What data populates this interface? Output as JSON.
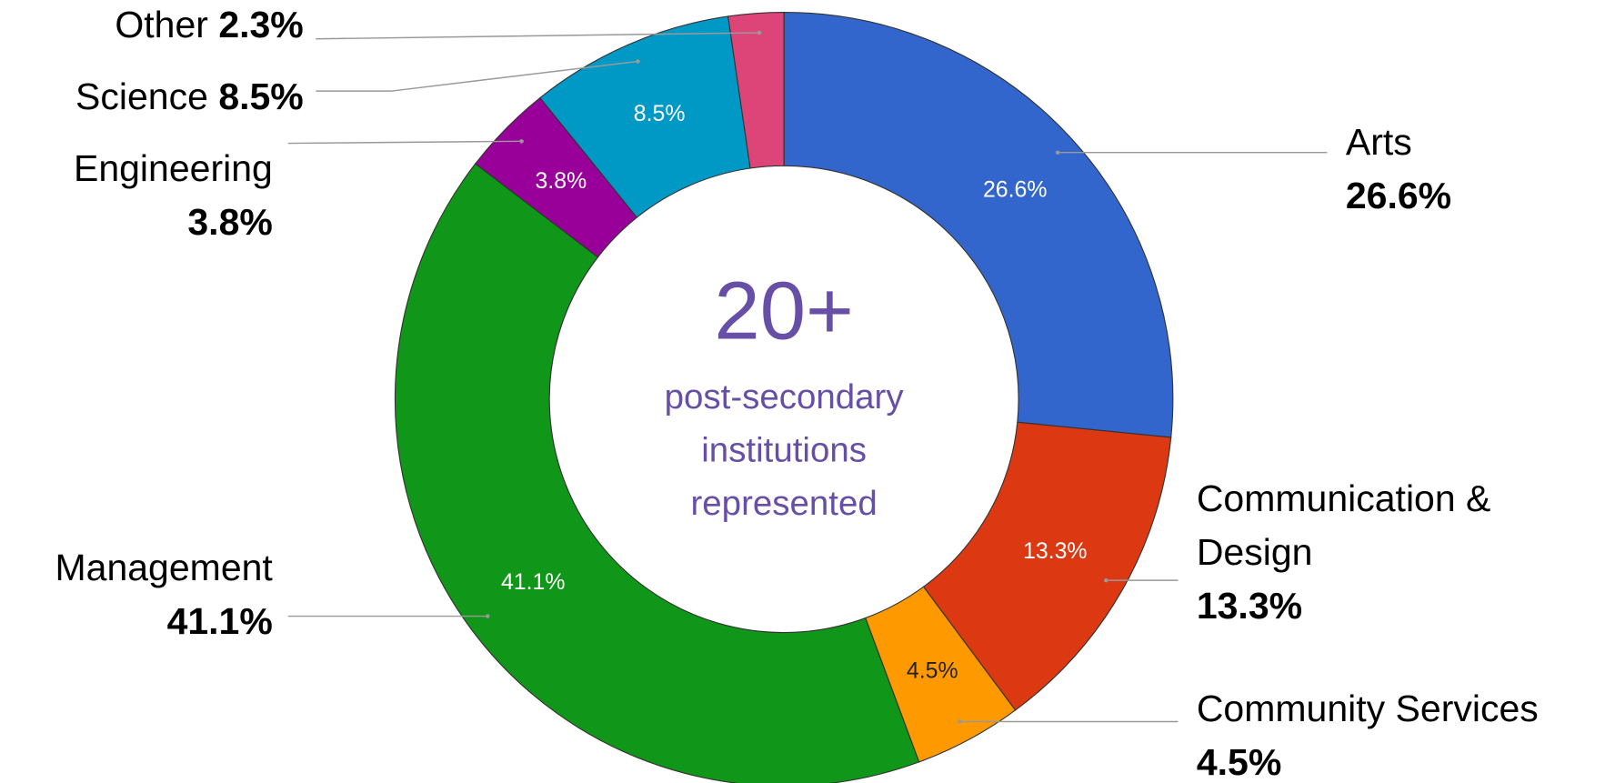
{
  "chart_data": {
    "type": "donut",
    "categories": [
      "Arts",
      "Communication & Design",
      "Community Services",
      "Management",
      "Engineering",
      "Science",
      "Other"
    ],
    "values": [
      26.6,
      13.3,
      4.5,
      41.1,
      3.8,
      8.5,
      2.3
    ],
    "value_labels": [
      "26.6%",
      "13.3%",
      "4.5%",
      "41.1%",
      "3.8%",
      "8.5%",
      "2.3%"
    ],
    "colors": [
      "#3366cc",
      "#dc3912",
      "#ff9900",
      "#109618",
      "#990099",
      "#0099c6",
      "#dd4477"
    ],
    "center_text": {
      "headline": "20+",
      "lines": [
        "post-secondary",
        "institutions",
        "represented"
      ]
    }
  }
}
